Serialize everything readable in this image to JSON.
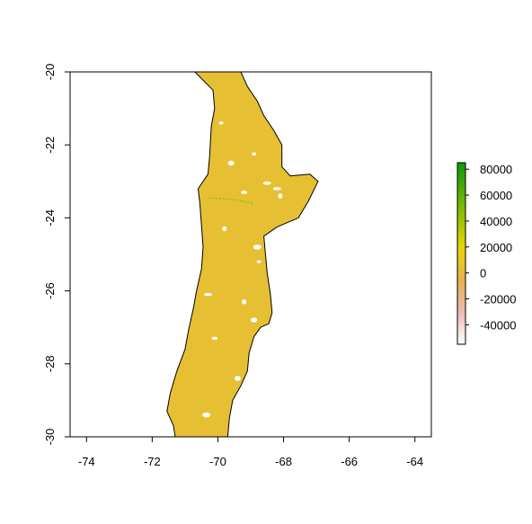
{
  "chart_data": {
    "type": "heatmap",
    "title": "",
    "xlabel": "",
    "ylabel": "",
    "xlim": [
      -74.5,
      -63.5
    ],
    "ylim": [
      -30,
      -20
    ],
    "x_ticks": [
      {
        "value": -74,
        "label": "-74"
      },
      {
        "value": -72,
        "label": "-72"
      },
      {
        "value": -70,
        "label": "-70"
      },
      {
        "value": -68,
        "label": "-68"
      },
      {
        "value": -66,
        "label": "-66"
      },
      {
        "value": -64,
        "label": "-64"
      }
    ],
    "y_ticks": [
      {
        "value": -20,
        "label": "-20"
      },
      {
        "value": -22,
        "label": "-22"
      },
      {
        "value": -24,
        "label": "-24"
      },
      {
        "value": -26,
        "label": "-26"
      },
      {
        "value": -28,
        "label": "-28"
      },
      {
        "value": -30,
        "label": "-30"
      }
    ],
    "legend": {
      "placement": "right",
      "range": [
        -55000,
        85000
      ],
      "ticks": [
        {
          "value": 80000,
          "label": "80000"
        },
        {
          "value": 60000,
          "label": "60000"
        },
        {
          "value": 40000,
          "label": "40000"
        },
        {
          "value": 20000,
          "label": "20000"
        },
        {
          "value": 0,
          "label": "0"
        },
        {
          "value": -20000,
          "label": "-20000"
        },
        {
          "value": -40000,
          "label": "-40000"
        }
      ],
      "color_stops": [
        {
          "value": -55000,
          "color": "#ffffff"
        },
        {
          "value": -30000,
          "color": "#ecbab0"
        },
        {
          "value": -5000,
          "color": "#e8b050"
        },
        {
          "value": 5000,
          "color": "#e8c030"
        },
        {
          "value": 20000,
          "color": "#e6d600"
        },
        {
          "value": 50000,
          "color": "#7cbc00"
        },
        {
          "value": 85000,
          "color": "#0a9a0a"
        }
      ]
    },
    "region_fill": "#e6bf33",
    "region_outline": [
      [
        -70.7,
        -20.0
      ],
      [
        -69.3,
        -20.0
      ],
      [
        -69.1,
        -20.4
      ],
      [
        -68.8,
        -20.8
      ],
      [
        -68.6,
        -21.2
      ],
      [
        -68.3,
        -21.6
      ],
      [
        -68.05,
        -22.0
      ],
      [
        -68.05,
        -22.6
      ],
      [
        -67.8,
        -22.85
      ],
      [
        -67.2,
        -22.8
      ],
      [
        -66.95,
        -23.0
      ],
      [
        -67.25,
        -23.55
      ],
      [
        -67.55,
        -24.0
      ],
      [
        -68.2,
        -24.25
      ],
      [
        -68.6,
        -24.5
      ],
      [
        -68.55,
        -25.0
      ],
      [
        -68.5,
        -25.5
      ],
      [
        -68.4,
        -26.1
      ],
      [
        -68.35,
        -26.6
      ],
      [
        -68.45,
        -26.9
      ],
      [
        -68.7,
        -27.0
      ],
      [
        -68.9,
        -27.25
      ],
      [
        -69.05,
        -27.7
      ],
      [
        -69.1,
        -28.2
      ],
      [
        -69.3,
        -28.6
      ],
      [
        -69.55,
        -29.0
      ],
      [
        -69.65,
        -29.5
      ],
      [
        -69.7,
        -30.0
      ],
      [
        -71.3,
        -30.0
      ],
      [
        -71.35,
        -29.7
      ],
      [
        -71.55,
        -29.3
      ],
      [
        -71.45,
        -28.8
      ],
      [
        -71.25,
        -28.2
      ],
      [
        -71.0,
        -27.6
      ],
      [
        -70.9,
        -27.1
      ],
      [
        -70.75,
        -26.5
      ],
      [
        -70.65,
        -26.0
      ],
      [
        -70.5,
        -25.4
      ],
      [
        -70.45,
        -24.8
      ],
      [
        -70.5,
        -24.2
      ],
      [
        -70.55,
        -23.6
      ],
      [
        -70.6,
        -23.2
      ],
      [
        -70.3,
        -22.8
      ],
      [
        -70.25,
        -22.3
      ],
      [
        -70.2,
        -21.5
      ],
      [
        -70.1,
        -21.0
      ],
      [
        -70.15,
        -20.5
      ]
    ],
    "voids": [
      [
        -68.9,
        -22.25
      ],
      [
        -69.6,
        -22.5
      ],
      [
        -68.2,
        -23.2
      ],
      [
        -68.1,
        -23.4
      ],
      [
        -69.2,
        -23.3
      ],
      [
        -68.8,
        -24.8
      ],
      [
        -68.75,
        -25.2
      ],
      [
        -68.9,
        -26.8
      ],
      [
        -70.3,
        -26.1
      ],
      [
        -69.2,
        -26.3
      ],
      [
        -70.1,
        -27.3
      ],
      [
        -70.35,
        -29.4
      ],
      [
        -69.9,
        -21.4
      ],
      [
        -69.4,
        -28.4
      ],
      [
        -68.5,
        -23.05
      ],
      [
        -69.8,
        -24.3
      ]
    ],
    "features": [
      {
        "points": [
          [
            -70.3,
            -23.45
          ],
          [
            -69.5,
            -23.5
          ],
          [
            -68.9,
            -23.6
          ]
        ],
        "color": "#8fc400"
      }
    ]
  }
}
